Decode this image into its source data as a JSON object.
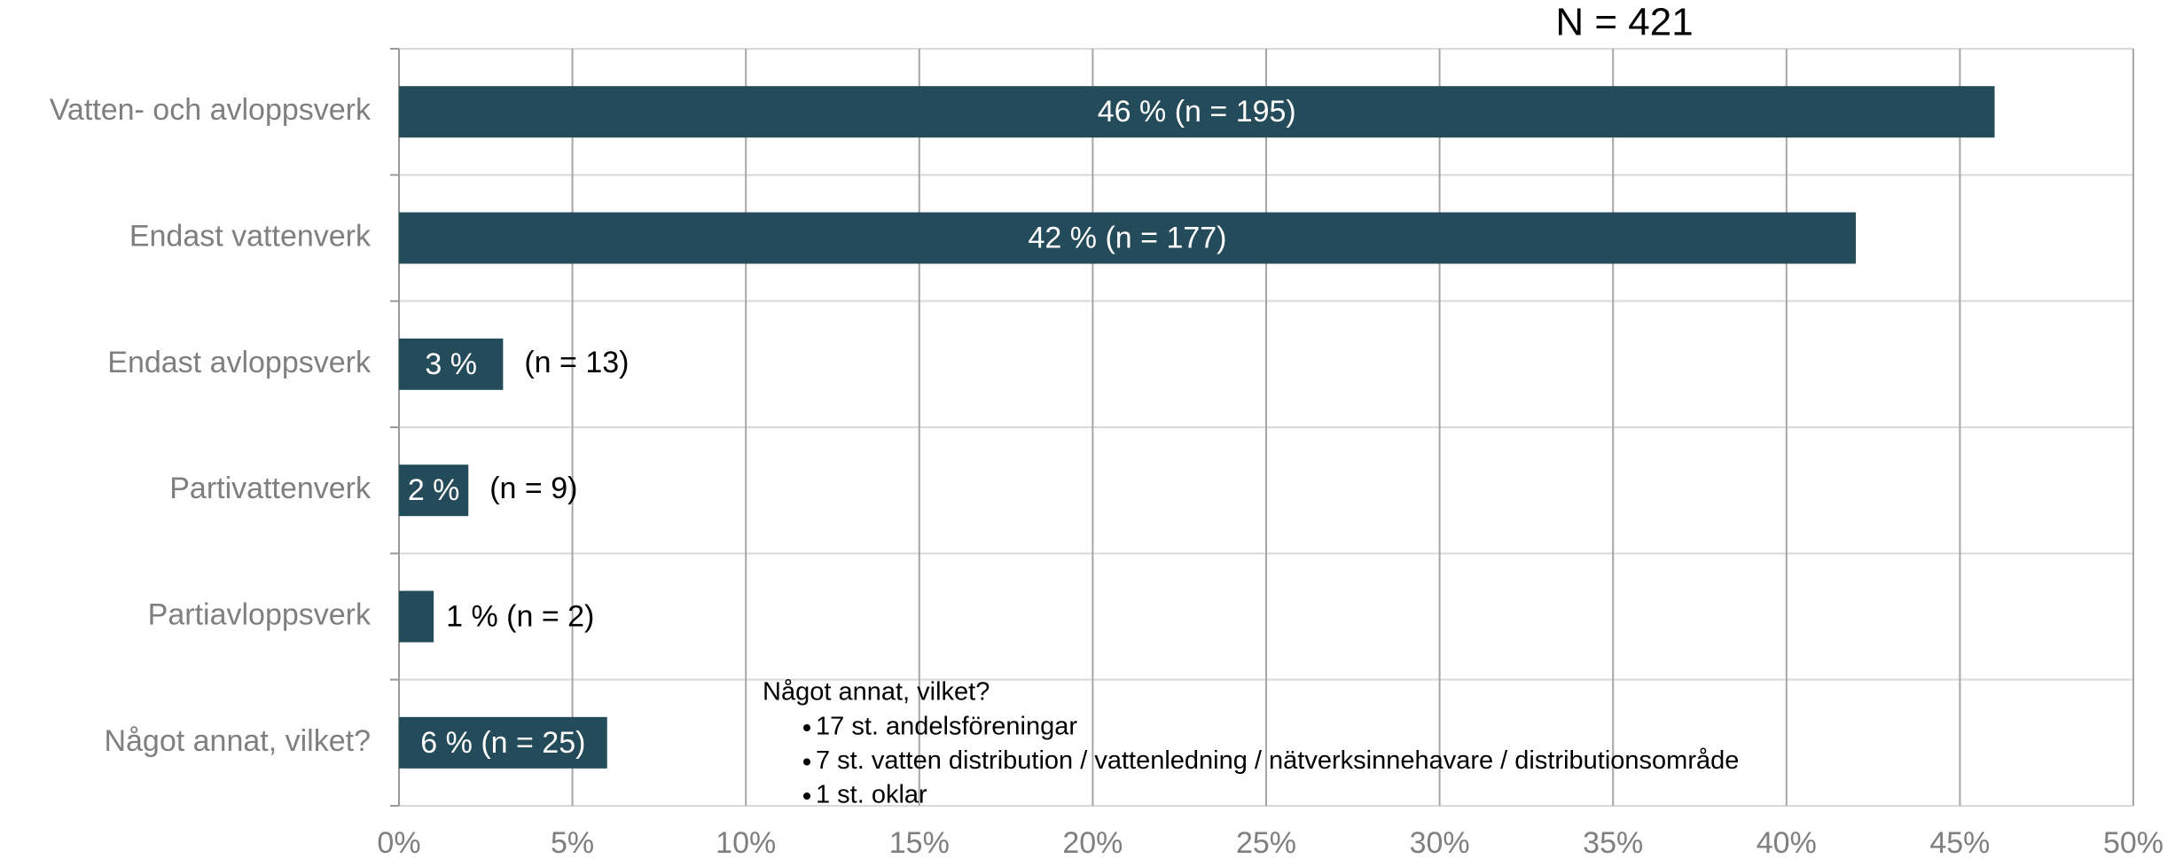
{
  "chart_data": {
    "type": "barh",
    "title": "N = 421",
    "categories": [
      "Vatten- och avloppsverk",
      "Endast vattenverk",
      "Endast avloppsverk",
      "Partivattenverk",
      "Partiavloppsverk",
      "Något annat, vilket?"
    ],
    "values": [
      46,
      42,
      3,
      2,
      1,
      6
    ],
    "value_labels": [
      "46 % (n = 195)",
      "42 % (n = 177)",
      "3 %",
      "2 %",
      "1 % (n = 2)",
      "6 % (n = 25)"
    ],
    "n_labels": [
      null,
      null,
      "(n = 13)",
      "(n = 9)",
      null,
      null
    ],
    "color": "#234b5a",
    "xlim": [
      0,
      50
    ],
    "xticks": [
      {
        "value": 0,
        "label": "0%"
      },
      {
        "value": 5,
        "label": "5%"
      },
      {
        "value": 10,
        "label": "10%"
      },
      {
        "value": 15,
        "label": "15%"
      },
      {
        "value": 20,
        "label": "20%"
      },
      {
        "value": 25,
        "label": "25%"
      },
      {
        "value": 30,
        "label": "30%"
      },
      {
        "value": 35,
        "label": "35%"
      },
      {
        "value": 40,
        "label": "40%"
      },
      {
        "value": 45,
        "label": "45%"
      },
      {
        "value": 50,
        "label": "50%"
      }
    ],
    "grid": true,
    "annotation": {
      "title": "Något annat, vilket?",
      "items": [
        "17 st. andelsföreningar",
        "7 st. vatten distribution / vattenledning / nätverksinnehavare / distributionsområde",
        "1 st. oklar"
      ]
    }
  }
}
